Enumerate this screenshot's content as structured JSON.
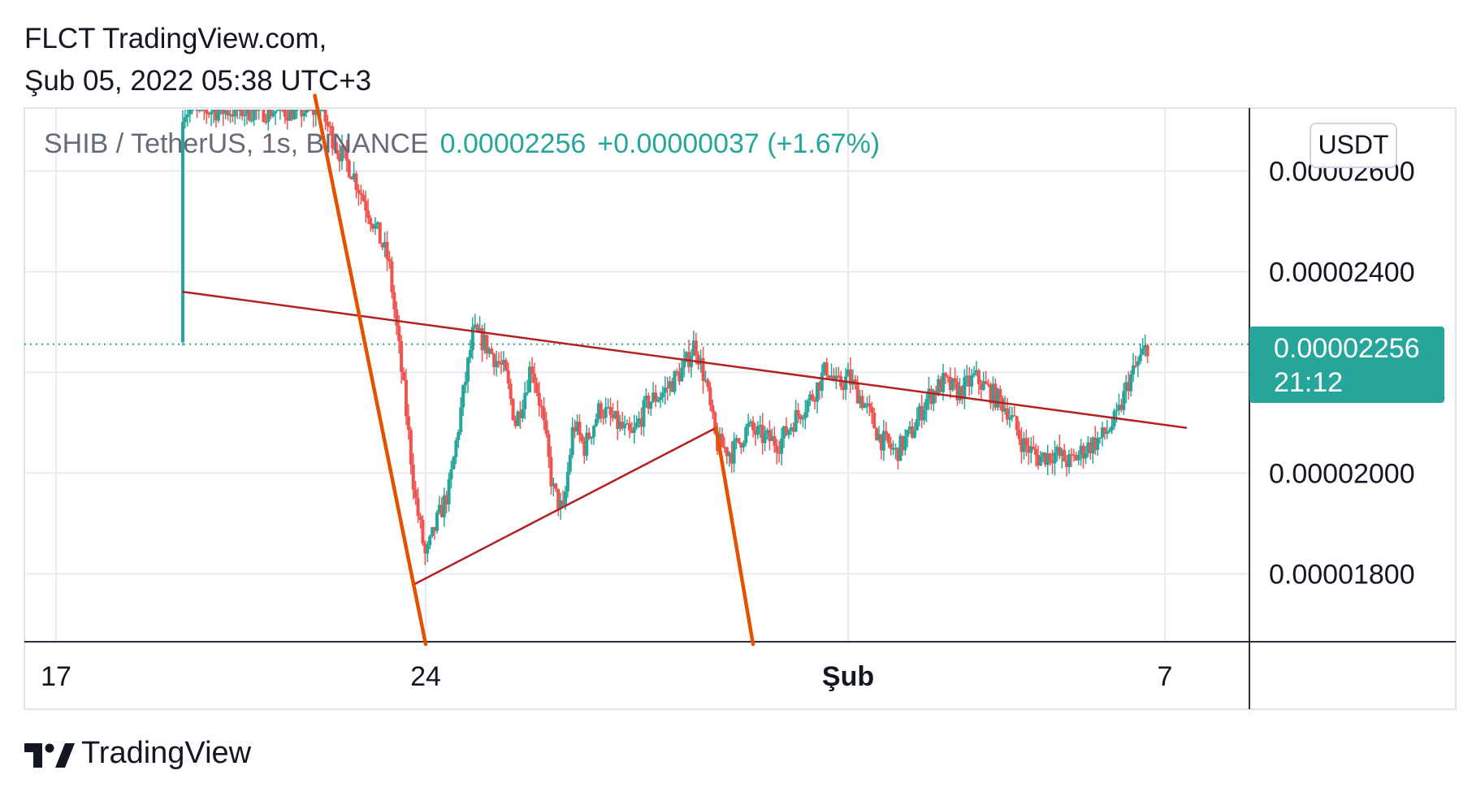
{
  "header": {
    "line1": "FLCT TradingView.com,",
    "line2": "Şub 05, 2022 05:38 UTC+3"
  },
  "legend": {
    "symbol": "SHIB / TetherUS, 1s, BINANCE",
    "last": "0.00002256",
    "change": "+0.00000037 (+1.67%)"
  },
  "currency": "USDT",
  "last_price_tag": {
    "price": "0.00002256",
    "countdown": "21:12"
  },
  "brand": {
    "name": "TradingView",
    "logo_icon": "tradingview-logo-icon"
  },
  "colors": {
    "up": "#26a69a",
    "down": "#ef5350",
    "trendline_dark": "#b22222",
    "trendline_orange": "#e65100"
  },
  "chart_data": {
    "type": "candlestick",
    "x_ticks": [
      "17",
      "24",
      "Şub",
      "7"
    ],
    "y_ticks": [
      "0.00001800",
      "0.00002000",
      "0.00002200",
      "0.00002400",
      "0.00002600"
    ],
    "y_tick_values": [
      1.8e-05,
      2e-05,
      2.2e-05,
      2.4e-05,
      2.6e-05
    ],
    "ylim": [
      1.665e-05,
      2.725e-05
    ],
    "last_price": 2.256e-05,
    "x_range_days": [
      16.4,
      39.6
    ],
    "x_tick_days": [
      17,
      24,
      32,
      38
    ],
    "price_path": [
      [
        21.9,
        2.75e-05
      ],
      [
        22.3,
        2.65e-05
      ],
      [
        22.6,
        2.6e-05
      ],
      [
        23.0,
        2.5e-05
      ],
      [
        23.3,
        2.42e-05
      ],
      [
        23.6,
        2.15e-05
      ],
      [
        23.8,
        1.95e-05
      ],
      [
        24.0,
        1.83e-05
      ],
      [
        24.2,
        1.9e-05
      ],
      [
        24.45,
        1.97e-05
      ],
      [
        24.7,
        2.15e-05
      ],
      [
        24.9,
        2.28e-05
      ],
      [
        25.1,
        2.26e-05
      ],
      [
        25.3,
        2.23e-05
      ],
      [
        25.5,
        2.2e-05
      ],
      [
        25.7,
        2.1e-05
      ],
      [
        25.9,
        2.17e-05
      ],
      [
        26.0,
        2.22e-05
      ],
      [
        26.2,
        2.12e-05
      ],
      [
        26.4,
        1.97e-05
      ],
      [
        26.6,
        1.92e-05
      ],
      [
        26.8,
        2.1e-05
      ],
      [
        27.0,
        2.05e-05
      ],
      [
        27.3,
        2.13e-05
      ],
      [
        27.6,
        2.1e-05
      ],
      [
        27.9,
        2.07e-05
      ],
      [
        28.2,
        2.14e-05
      ],
      [
        28.5,
        2.16e-05
      ],
      [
        28.9,
        2.21e-05
      ],
      [
        29.1,
        2.26e-05
      ],
      [
        29.3,
        2.18e-05
      ],
      [
        29.5,
        2.06e-05
      ],
      [
        29.8,
        2.04e-05
      ],
      [
        30.1,
        2.09e-05
      ],
      [
        30.4,
        2.07e-05
      ],
      [
        30.7,
        2.06e-05
      ],
      [
        31.0,
        2.11e-05
      ],
      [
        31.3,
        2.15e-05
      ],
      [
        31.6,
        2.21e-05
      ],
      [
        31.8,
        2.17e-05
      ],
      [
        32.0,
        2.19e-05
      ],
      [
        32.3,
        2.14e-05
      ],
      [
        32.6,
        2.07e-05
      ],
      [
        32.9,
        2.04e-05
      ],
      [
        33.2,
        2.08e-05
      ],
      [
        33.5,
        2.15e-05
      ],
      [
        33.8,
        2.18e-05
      ],
      [
        34.1,
        2.16e-05
      ],
      [
        34.4,
        2.19e-05
      ],
      [
        34.7,
        2.16e-05
      ],
      [
        35.0,
        2.13e-05
      ],
      [
        35.3,
        2.06e-05
      ],
      [
        35.6,
        2.03e-05
      ],
      [
        35.9,
        2.04e-05
      ],
      [
        36.2,
        2.02e-05
      ],
      [
        36.5,
        2.05e-05
      ],
      [
        36.8,
        2.07e-05
      ],
      [
        37.1,
        2.11e-05
      ],
      [
        37.3,
        2.18e-05
      ],
      [
        37.5,
        2.22e-05
      ],
      [
        37.7,
        2.26e-05
      ]
    ],
    "trendlines": [
      {
        "color": "#b22222",
        "from": [
          19.4,
          2.36e-05
        ],
        "to": [
          38.4,
          2.09e-05
        ]
      },
      {
        "color": "#b22222",
        "from": [
          23.8,
          1.78e-05
        ],
        "to": [
          29.5,
          2.09e-05
        ]
      },
      {
        "color": "#e65100",
        "from": [
          21.9,
          2.75e-05
        ],
        "to": [
          24.0,
          1.66e-05
        ]
      },
      {
        "color": "#e65100",
        "from": [
          29.5,
          2.09e-05
        ],
        "to": [
          30.2,
          1.66e-05
        ]
      }
    ]
  }
}
